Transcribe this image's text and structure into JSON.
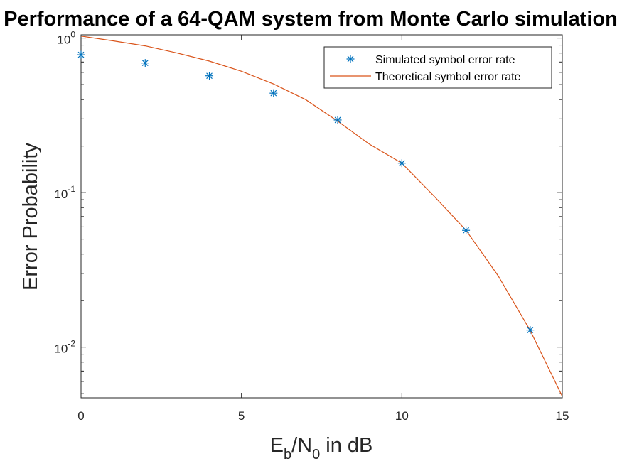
{
  "chart_data": {
    "type": "line",
    "title": "Performance of a 64-QAM system from Monte Carlo simulation",
    "xlabel": {
      "E": "E",
      "b": "b",
      "slash_N": "/N",
      "zero": "0",
      "rest": " in dB"
    },
    "ylabel": "Error Probability",
    "xlim": [
      0,
      15
    ],
    "ylim": [
      0.0047,
      1.05
    ],
    "yscale": "log",
    "x_ticks": [
      0,
      5,
      10,
      15
    ],
    "y_ticks": [
      {
        "value": 1,
        "base": "10",
        "exp": "0"
      },
      {
        "value": 0.1,
        "base": "10",
        "exp": "-1"
      },
      {
        "value": 0.01,
        "base": "10",
        "exp": "-2"
      }
    ],
    "grid": false,
    "legend_position": "top-right",
    "series": [
      {
        "name": "Simulated symbol error rate",
        "kind": "markers",
        "marker": "asterisk",
        "color": "#0072BD",
        "x": [
          0,
          2,
          4,
          6,
          8,
          10,
          12,
          14
        ],
        "y": [
          0.78,
          0.69,
          0.57,
          0.44,
          0.295,
          0.155,
          0.057,
          0.0129
        ]
      },
      {
        "name": "Theoretical symbol error rate",
        "kind": "line",
        "color": "#D95319",
        "x": [
          0,
          1,
          2,
          3,
          4,
          5,
          6,
          7,
          8,
          9,
          10,
          11,
          12,
          13,
          14,
          15
        ],
        "y": [
          1.03,
          0.96,
          0.89,
          0.8,
          0.71,
          0.61,
          0.505,
          0.4,
          0.29,
          0.205,
          0.155,
          0.095,
          0.057,
          0.029,
          0.0128,
          0.0048
        ]
      }
    ]
  }
}
